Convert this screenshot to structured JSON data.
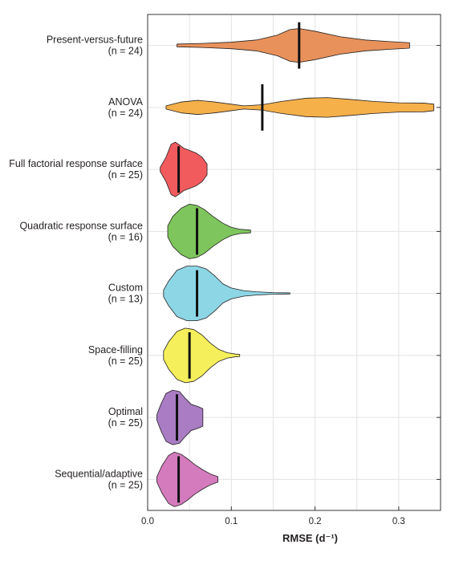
{
  "chart_data": {
    "type": "violin",
    "xlabel": "RMSE (d⁻¹)",
    "ylabel": "",
    "xlim": [
      0.0,
      0.35
    ],
    "xticks": [
      "0.0",
      "0.1",
      "0.2",
      "0.3"
    ],
    "grid": true,
    "orientation": "horizontal",
    "series": [
      {
        "name": "Present-versus-future",
        "n_label": "(n = 24)",
        "n": 24,
        "color": "#e8915a",
        "min": 0.035,
        "max": 0.313,
        "median": 0.181,
        "density": [
          [
            0.035,
            0.05
          ],
          [
            0.07,
            0.08
          ],
          [
            0.1,
            0.12
          ],
          [
            0.13,
            0.2
          ],
          [
            0.155,
            0.38
          ],
          [
            0.17,
            0.58
          ],
          [
            0.181,
            0.62
          ],
          [
            0.2,
            0.52
          ],
          [
            0.23,
            0.32
          ],
          [
            0.26,
            0.2
          ],
          [
            0.29,
            0.14
          ],
          [
            0.313,
            0.1
          ]
        ]
      },
      {
        "name": "ANOVA",
        "n_label": "(n = 24)",
        "n": 24,
        "color": "#f5b04a",
        "min": 0.022,
        "max": 0.342,
        "median": 0.137,
        "density": [
          [
            0.022,
            0.06
          ],
          [
            0.04,
            0.2
          ],
          [
            0.06,
            0.26
          ],
          [
            0.08,
            0.2
          ],
          [
            0.1,
            0.12
          ],
          [
            0.115,
            0.06
          ],
          [
            0.137,
            0.1
          ],
          [
            0.16,
            0.22
          ],
          [
            0.19,
            0.34
          ],
          [
            0.215,
            0.36
          ],
          [
            0.24,
            0.3
          ],
          [
            0.27,
            0.22
          ],
          [
            0.3,
            0.17
          ],
          [
            0.33,
            0.16
          ],
          [
            0.342,
            0.12
          ]
        ]
      },
      {
        "name": "Full factorial response surface",
        "n_label": "(n = 25)",
        "n": 25,
        "color": "#f25b5e",
        "min": 0.015,
        "max": 0.071,
        "median": 0.037,
        "density": [
          [
            0.015,
            0.08
          ],
          [
            0.022,
            0.45
          ],
          [
            0.028,
            0.92
          ],
          [
            0.033,
            1.0
          ],
          [
            0.038,
            0.9
          ],
          [
            0.043,
            0.78
          ],
          [
            0.05,
            0.7
          ],
          [
            0.058,
            0.6
          ],
          [
            0.065,
            0.45
          ],
          [
            0.071,
            0.2
          ]
        ]
      },
      {
        "name": "Quadratic response surface",
        "n_label": "(n = 16)",
        "n": 16,
        "color": "#7dc55c",
        "min": 0.024,
        "max": 0.123,
        "median": 0.059,
        "density": [
          [
            0.024,
            0.2
          ],
          [
            0.03,
            0.55
          ],
          [
            0.04,
            0.85
          ],
          [
            0.05,
            1.0
          ],
          [
            0.059,
            0.95
          ],
          [
            0.068,
            0.8
          ],
          [
            0.078,
            0.55
          ],
          [
            0.09,
            0.3
          ],
          [
            0.1,
            0.15
          ],
          [
            0.11,
            0.08
          ],
          [
            0.123,
            0.05
          ]
        ]
      },
      {
        "name": "Custom",
        "n_label": "(n = 13)",
        "n": 13,
        "color": "#8dd6e6",
        "min": 0.019,
        "max": 0.17,
        "median": 0.059,
        "density": [
          [
            0.019,
            0.12
          ],
          [
            0.025,
            0.45
          ],
          [
            0.035,
            0.85
          ],
          [
            0.047,
            1.0
          ],
          [
            0.059,
            1.0
          ],
          [
            0.07,
            0.9
          ],
          [
            0.08,
            0.65
          ],
          [
            0.09,
            0.35
          ],
          [
            0.1,
            0.2
          ],
          [
            0.115,
            0.1
          ],
          [
            0.13,
            0.06
          ],
          [
            0.15,
            0.03
          ],
          [
            0.17,
            0.02
          ]
        ]
      },
      {
        "name": "Space-filling",
        "n_label": "(n = 25)",
        "n": 25,
        "color": "#f4ef5a",
        "min": 0.019,
        "max": 0.11,
        "median": 0.05,
        "density": [
          [
            0.019,
            0.15
          ],
          [
            0.025,
            0.5
          ],
          [
            0.035,
            0.88
          ],
          [
            0.045,
            1.0
          ],
          [
            0.055,
            0.95
          ],
          [
            0.065,
            0.75
          ],
          [
            0.075,
            0.45
          ],
          [
            0.085,
            0.22
          ],
          [
            0.095,
            0.1
          ],
          [
            0.105,
            0.05
          ],
          [
            0.11,
            0.04
          ]
        ]
      },
      {
        "name": "Optimal",
        "n_label": "(n = 25)",
        "n": 25,
        "color": "#a97cc4",
        "min": 0.011,
        "max": 0.066,
        "median": 0.035,
        "density": [
          [
            0.011,
            0.1
          ],
          [
            0.016,
            0.5
          ],
          [
            0.022,
            0.88
          ],
          [
            0.03,
            1.0
          ],
          [
            0.038,
            0.95
          ],
          [
            0.045,
            0.7
          ],
          [
            0.052,
            0.48
          ],
          [
            0.06,
            0.4
          ],
          [
            0.066,
            0.32
          ]
        ]
      },
      {
        "name": "Sequential/adaptive",
        "n_label": "(n = 25)",
        "n": 25,
        "color": "#d47bbd",
        "min": 0.011,
        "max": 0.084,
        "median": 0.037,
        "density": [
          [
            0.011,
            0.1
          ],
          [
            0.017,
            0.5
          ],
          [
            0.025,
            0.88
          ],
          [
            0.032,
            1.0
          ],
          [
            0.04,
            0.92
          ],
          [
            0.048,
            0.75
          ],
          [
            0.056,
            0.55
          ],
          [
            0.066,
            0.35
          ],
          [
            0.075,
            0.2
          ],
          [
            0.084,
            0.1
          ]
        ]
      }
    ]
  }
}
